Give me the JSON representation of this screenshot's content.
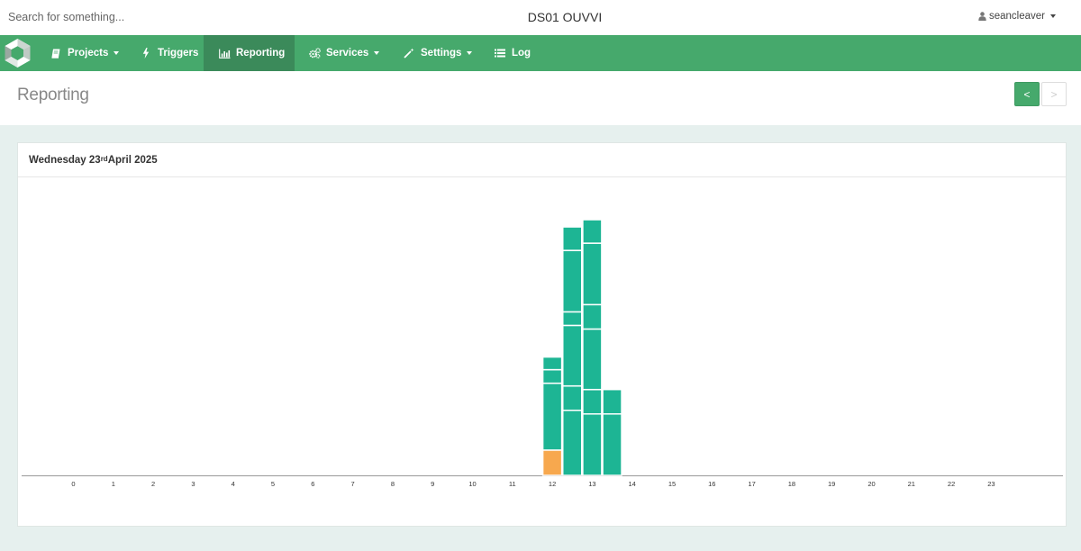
{
  "search": {
    "placeholder": "Search for something..."
  },
  "app_title": "DS01 OUVVI",
  "user": {
    "name": "seancleaver",
    "icon": "user-icon"
  },
  "nav": {
    "logo": "app-logo",
    "items": [
      {
        "label": "Projects",
        "icon": "book-icon",
        "dropdown": true
      },
      {
        "label": "Triggers",
        "icon": "bolt-icon",
        "dropdown": false
      },
      {
        "label": "Reporting",
        "icon": "bar-chart-icon",
        "dropdown": false,
        "active": true
      },
      {
        "label": "Services",
        "icon": "cogs-icon",
        "dropdown": true
      },
      {
        "label": "Settings",
        "icon": "magic-wand-icon",
        "dropdown": true
      },
      {
        "label": "Log",
        "icon": "list-icon",
        "dropdown": false
      }
    ]
  },
  "page": {
    "title": "Reporting",
    "prev_label": "<",
    "next_label": ">"
  },
  "panel": {
    "date_prefix": "Wednesday 23",
    "date_suffix": "rd",
    "date_rest": " April 2025"
  },
  "chart_data": {
    "type": "bar",
    "stacked": true,
    "x_ticks": [
      "0",
      "1",
      "2",
      "3",
      "4",
      "5",
      "6",
      "7",
      "8",
      "9",
      "10",
      "11",
      "12",
      "13",
      "14",
      "15",
      "16",
      "17",
      "18",
      "19",
      "20",
      "21",
      "22",
      "23"
    ],
    "y_range": [
      0,
      290
    ],
    "colors": {
      "default": "#1db594",
      "warning": "#f7a84e"
    },
    "bars": [
      {
        "hour": 12,
        "offset": 0.0,
        "segments": [
          {
            "value": 28,
            "color": "#f7a84e"
          },
          {
            "value": 74,
            "color": "#1db594"
          },
          {
            "value": 15,
            "color": "#1db594"
          },
          {
            "value": 14,
            "color": "#1db594"
          }
        ]
      },
      {
        "hour": 12,
        "offset": 0.5,
        "segments": [
          {
            "value": 72,
            "color": "#1db594"
          },
          {
            "value": 27,
            "color": "#1db594"
          },
          {
            "value": 67,
            "color": "#1db594"
          },
          {
            "value": 15,
            "color": "#1db594"
          },
          {
            "value": 68,
            "color": "#1db594"
          },
          {
            "value": 26,
            "color": "#1db594"
          }
        ]
      },
      {
        "hour": 13,
        "offset": 0.0,
        "segments": [
          {
            "value": 68,
            "color": "#1db594"
          },
          {
            "value": 27,
            "color": "#1db594"
          },
          {
            "value": 67,
            "color": "#1db594"
          },
          {
            "value": 27,
            "color": "#1db594"
          },
          {
            "value": 68,
            "color": "#1db594"
          },
          {
            "value": 26,
            "color": "#1db594"
          }
        ]
      },
      {
        "hour": 13,
        "offset": 0.5,
        "segments": [
          {
            "value": 68,
            "color": "#1db594"
          },
          {
            "value": 27,
            "color": "#1db594"
          }
        ]
      }
    ]
  }
}
